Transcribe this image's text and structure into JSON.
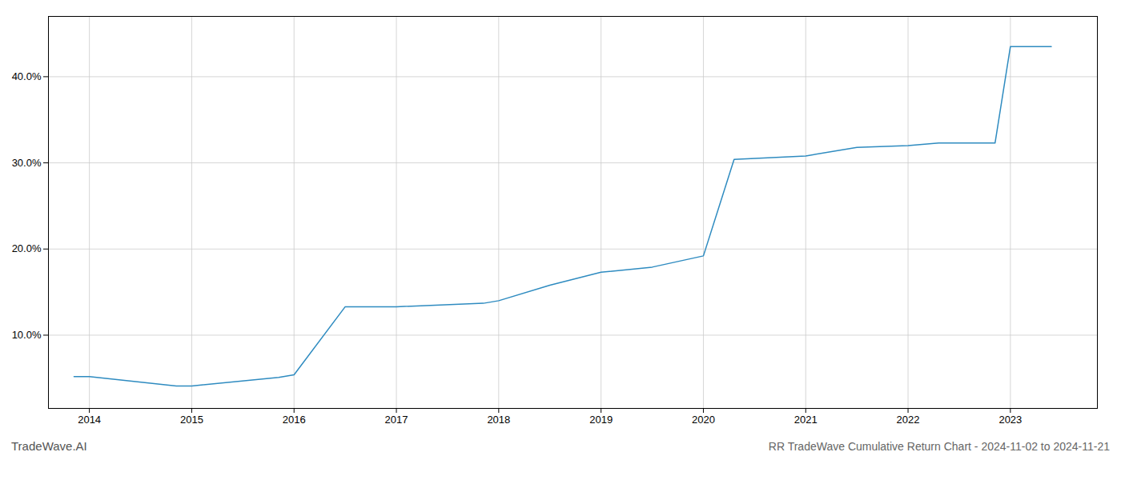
{
  "chart_data": {
    "type": "line",
    "title": "RR TradeWave Cumulative Return Chart - 2024-11-02 to 2024-11-21",
    "annotations": [
      "TradeWave.AI"
    ],
    "x": [
      2013.85,
      2014.0,
      2014.85,
      2015.0,
      2015.85,
      2016.0,
      2016.5,
      2017.0,
      2017.85,
      2018.0,
      2018.5,
      2019.0,
      2019.5,
      2020.0,
      2020.3,
      2021.0,
      2021.5,
      2022.0,
      2022.3,
      2022.85,
      2023.0,
      2023.4
    ],
    "values": [
      5.2,
      5.2,
      4.1,
      4.1,
      5.1,
      5.4,
      13.3,
      13.3,
      13.7,
      14.0,
      15.8,
      17.3,
      17.9,
      19.2,
      30.4,
      30.8,
      31.8,
      32.0,
      32.3,
      32.3,
      43.5,
      43.5
    ],
    "color": "#2e8bc0",
    "xlim": [
      2013.6,
      2023.85
    ],
    "xticks": [
      2014,
      2015,
      2016,
      2017,
      2018,
      2019,
      2020,
      2021,
      2022,
      2023
    ],
    "ylim": [
      1.5,
      47
    ],
    "yticks": [
      {
        "value": 10.0,
        "label": "10.0%"
      },
      {
        "value": 20.0,
        "label": "20.0%"
      },
      {
        "value": 30.0,
        "label": "30.0%"
      },
      {
        "value": 40.0,
        "label": "40.0%"
      }
    ],
    "grid": true
  }
}
